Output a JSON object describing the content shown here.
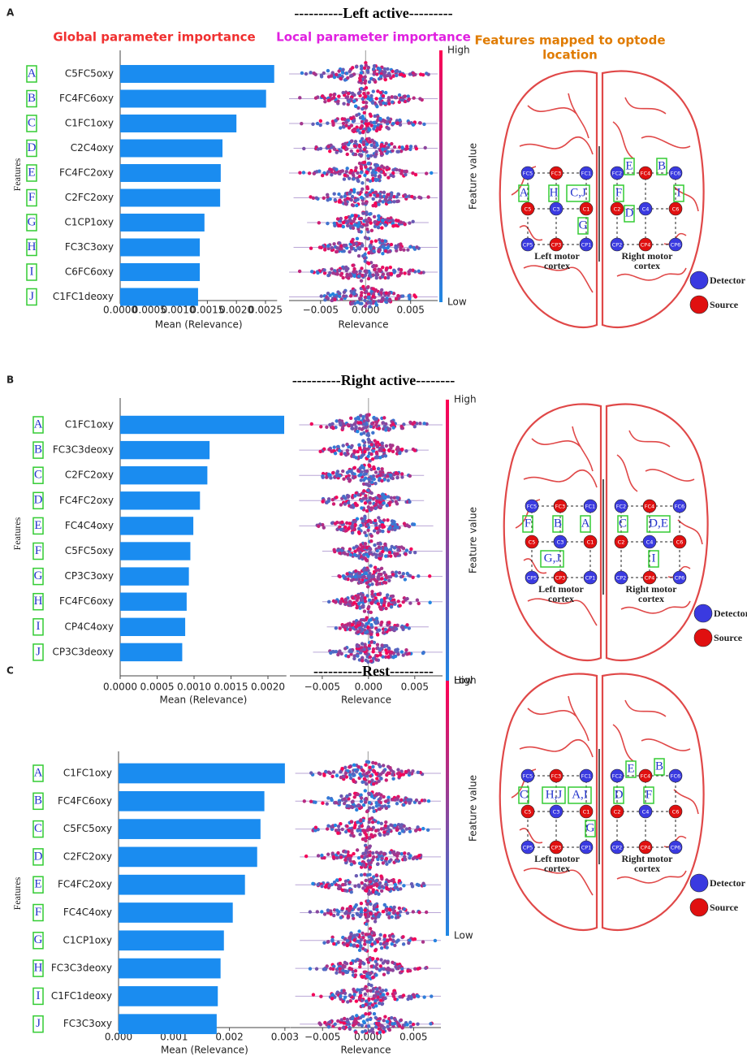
{
  "panels": [
    {
      "label": "A",
      "title": "----------Left active---------",
      "letters": [
        "E",
        "B",
        "A",
        "H",
        "C,J",
        "F",
        "I",
        "D",
        "G"
      ]
    },
    {
      "label": "B",
      "title": "----------Right active--------",
      "letters": [
        "F",
        "B",
        "A",
        "C",
        "D,E",
        "G,J",
        "I"
      ]
    },
    {
      "label": "C",
      "title": "----------Rest---------",
      "letters": [
        "E",
        "B",
        "C",
        "H,J",
        "A,I",
        "D",
        "F",
        "G"
      ]
    }
  ],
  "headings": {
    "global": "Global parameter importance",
    "local": "Local parameter importance",
    "mapped": [
      "Features mapped to optode",
      "location"
    ]
  },
  "brain": {
    "left": [
      [
        "FC5",
        "FC3",
        "FC1"
      ],
      [
        "C5",
        "C3",
        "C1"
      ],
      [
        "CP5",
        "CP3",
        "CP1"
      ]
    ],
    "right": [
      [
        "FC2",
        "FC4",
        "FC6"
      ],
      [
        "C2",
        "C4",
        "C6"
      ],
      [
        "CP2",
        "CP4",
        "CP6"
      ]
    ],
    "left_cortex": [
      "Left motor",
      "cortex"
    ],
    "right_cortex": [
      "Right motor",
      "cortex"
    ],
    "detector": "Detector",
    "source": "Source"
  },
  "chart_data": [
    {
      "type": "bar",
      "orientation": "horizontal",
      "color": "#1a8cf0",
      "xlabel": "Mean (Relevance)",
      "ylabel": "Features",
      "row_letters": [
        "A",
        "B",
        "C",
        "D",
        "E",
        "F",
        "G",
        "H",
        "I",
        "J"
      ],
      "categories": [
        "C5FC5oxy",
        "FC4FC6oxy",
        "C1FC1oxy",
        "C2C4oxy",
        "FC4FC2oxy",
        "C2FC2oxy",
        "C1CP1oxy",
        "FC3C3oxy",
        "C6FC6oxy",
        "C1FC1deoxy"
      ],
      "values": [
        0.00265,
        0.00251,
        0.002,
        0.00176,
        0.00173,
        0.00172,
        0.00145,
        0.00137,
        0.00137,
        0.00134
      ],
      "xlim": [
        0,
        0.0027
      ],
      "xticks": [
        {
          "value": 0,
          "label": "0.0000"
        },
        {
          "value": 0.0005,
          "label": "0.0005"
        },
        {
          "value": 0.001,
          "label": "0.0010"
        },
        {
          "value": 0.0015,
          "label": "0.0015"
        },
        {
          "value": 0.002,
          "label": "0.0020"
        },
        {
          "value": 0.0025,
          "label": "0.0025"
        }
      ]
    },
    {
      "type": "beeswarm",
      "xlabel": "Relevance",
      "min": [
        -0.0085,
        -0.0085,
        -0.0085,
        -0.008,
        -0.0085,
        -0.008,
        -0.0065,
        -0.008,
        -0.0085,
        -0.0085
      ],
      "max": [
        0.008,
        0.008,
        0.008,
        0.008,
        0.008,
        0.008,
        0.007,
        0.008,
        0.008,
        0.008
      ],
      "xlim": [
        -0.0085,
        0.008
      ],
      "xticks": [
        {
          "value": -0.005,
          "label": "−0.005"
        },
        {
          "value": 0,
          "label": "0.000"
        },
        {
          "value": 0.005,
          "label": "0.005"
        }
      ],
      "colorbar": {
        "label": "Feature value",
        "high": "High",
        "low": "Low",
        "colors": [
          "#1e88e5",
          "#ff0052"
        ]
      }
    },
    {
      "type": "bar",
      "orientation": "horizontal",
      "color": "#1a8cf0",
      "xlabel": "Mean (Relevance)",
      "ylabel": "Features",
      "row_letters": [
        "A",
        "B",
        "C",
        "D",
        "E",
        "F",
        "G",
        "H",
        "I",
        "J"
      ],
      "categories": [
        "C1FC1oxy",
        "FC3C3deoxy",
        "C2FC2oxy",
        "FC4FC2oxy",
        "FC4C4oxy",
        "C5FC5oxy",
        "CP3C3oxy",
        "FC4FC6oxy",
        "CP4C4oxy",
        "CP3C3deoxy"
      ],
      "values": [
        0.00222,
        0.00121,
        0.00118,
        0.00108,
        0.00099,
        0.00095,
        0.00093,
        0.0009,
        0.00088,
        0.00084
      ],
      "xlim": [
        0,
        0.00225
      ],
      "xticks": [
        {
          "value": 0,
          "label": "0.0000"
        },
        {
          "value": 0.0005,
          "label": "0.0005"
        },
        {
          "value": 0.001,
          "label": "0.0010"
        },
        {
          "value": 0.0015,
          "label": "0.0015"
        },
        {
          "value": 0.002,
          "label": "0.0020"
        }
      ]
    },
    {
      "type": "beeswarm",
      "xlabel": "Relevance",
      "min": [
        -0.0075,
        -0.0075,
        -0.0075,
        -0.0075,
        -0.0075,
        -0.005,
        -0.004,
        -0.005,
        -0.0045,
        -0.006
      ],
      "max": [
        0.008,
        0.0065,
        0.006,
        0.006,
        0.007,
        0.008,
        0.008,
        0.008,
        0.0065,
        0.008
      ],
      "xlim": [
        -0.0085,
        0.008
      ],
      "xticks": [
        {
          "value": -0.005,
          "label": "−0.005"
        },
        {
          "value": 0,
          "label": "0.000"
        },
        {
          "value": 0.005,
          "label": "0.005"
        }
      ],
      "colorbar": {
        "label": "Feature value",
        "high": "High",
        "low": "Low",
        "colors": [
          "#1e88e5",
          "#ff0052"
        ]
      }
    },
    {
      "type": "bar",
      "orientation": "horizontal",
      "color": "#1a8cf0",
      "xlabel": "Mean (Relevance)",
      "ylabel": "Features",
      "row_letters": [
        "A",
        "B",
        "C",
        "D",
        "E",
        "F",
        "G",
        "H",
        "I",
        "J"
      ],
      "categories": [
        "C1FC1oxy",
        "FC4FC6oxy",
        "C5FC5oxy",
        "C2FC2oxy",
        "FC4FC2oxy",
        "FC4C4oxy",
        "C1CP1oxy",
        "FC3C3deoxy",
        "C1FC1deoxy",
        "FC3C3oxy"
      ],
      "values": [
        0.003,
        0.00263,
        0.00256,
        0.0025,
        0.00228,
        0.00206,
        0.0019,
        0.00184,
        0.00179,
        0.00177
      ],
      "xlim": [
        0,
        0.0031
      ],
      "xticks": [
        {
          "value": 0,
          "label": "0.000"
        },
        {
          "value": 0.001,
          "label": "0.001"
        },
        {
          "value": 0.002,
          "label": "0.002"
        },
        {
          "value": 0.003,
          "label": "0.003"
        }
      ]
    },
    {
      "type": "beeswarm",
      "xlabel": "Relevance",
      "min": [
        -0.008,
        -0.008,
        -0.008,
        -0.0075,
        -0.008,
        -0.0075,
        -0.0075,
        -0.008,
        -0.008,
        -0.0075
      ],
      "max": [
        0.008,
        0.008,
        0.008,
        0.008,
        0.008,
        0.008,
        0.008,
        0.008,
        0.008,
        0.008
      ],
      "xlim": [
        -0.0085,
        0.008
      ],
      "xticks": [
        {
          "value": -0.005,
          "label": "−0.005"
        },
        {
          "value": 0,
          "label": "0.000"
        },
        {
          "value": 0.005,
          "label": "0.005"
        }
      ],
      "colorbar": {
        "label": "Feature value",
        "high": "High",
        "low": "Low",
        "colors": [
          "#1e88e5",
          "#ff0052"
        ]
      }
    }
  ]
}
